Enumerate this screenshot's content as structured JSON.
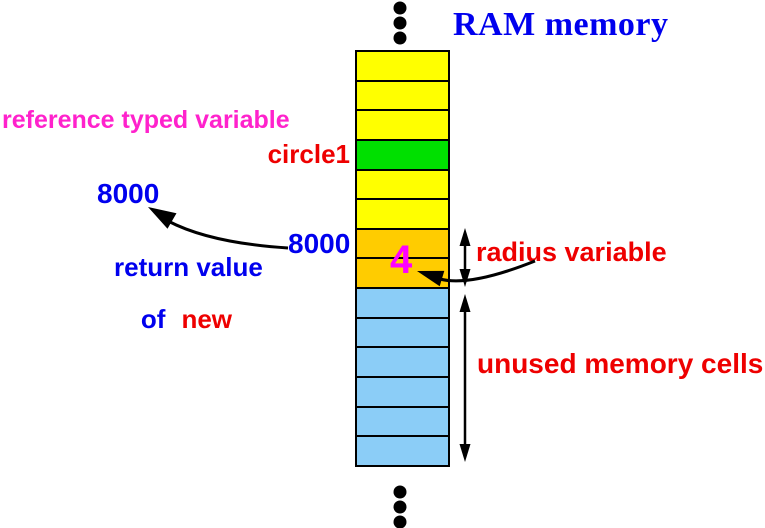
{
  "title": "RAM memory",
  "colors": {
    "title_blue": "#0000ee",
    "label_blue": "#0000ee",
    "label_red": "#ee0000",
    "label_magenta": "#ff22cc",
    "value_magenta": "#ff00ff",
    "arrow_black": "#000000",
    "cell_yellow": "#ffff00",
    "cell_green": "#00e000",
    "cell_gold": "#ffcc00",
    "cell_blue": "#8bcdf7"
  },
  "labels": {
    "reference_typed_variable": "reference typed variable",
    "circle1": "circle1",
    "address_upper": "8000",
    "address_lower": "8000",
    "return_value": "return value",
    "of": "of",
    "new": "new",
    "radius_variable": "radius variable",
    "unused_memory_cells": "unused memory cells"
  },
  "memory_column": {
    "cell_value": "4",
    "cells": [
      "yellow",
      "yellow",
      "yellow",
      "green",
      "yellow",
      "yellow",
      "gold",
      "gold",
      "blue",
      "blue",
      "blue",
      "blue",
      "blue",
      "blue"
    ]
  }
}
